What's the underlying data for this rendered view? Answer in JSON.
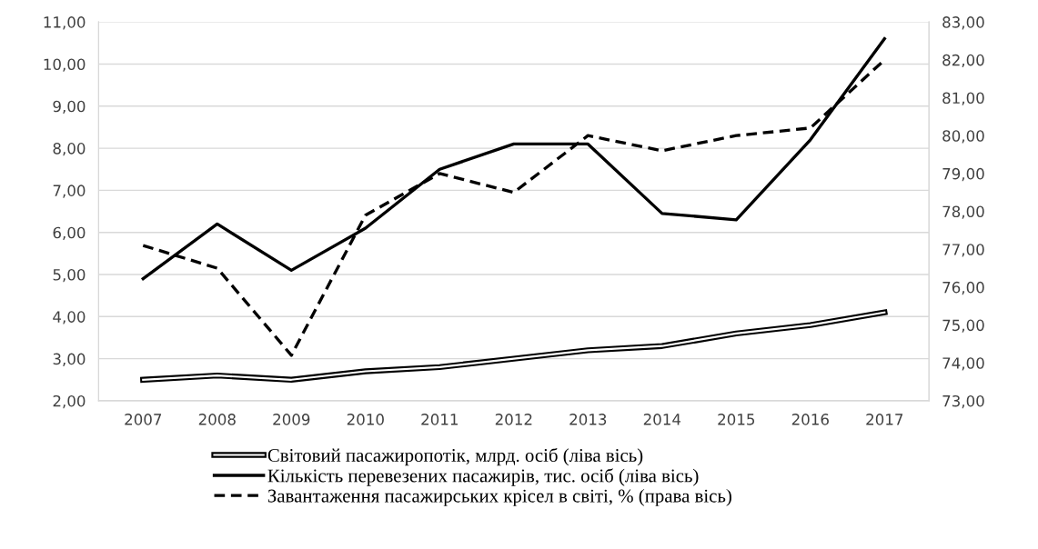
{
  "chart_data": {
    "type": "line",
    "categories": [
      "2007",
      "2008",
      "2009",
      "2010",
      "2011",
      "2012",
      "2013",
      "2014",
      "2015",
      "2016",
      "2017"
    ],
    "series": [
      {
        "name": "Світовий пасажиропотік, млрд. осіб (ліва вісь)",
        "color": "#000000",
        "values": [
          2.5,
          2.6,
          2.5,
          2.7,
          2.8,
          3.0,
          3.2,
          3.3,
          3.6,
          3.8,
          4.1
        ]
      },
      {
        "name": "Кількість перевезених пасажирів, тис. осіб (ліва вісь)",
        "color": "#000000",
        "line_style": "solid",
        "values": [
          4.9,
          6.2,
          5.1,
          6.1,
          7.5,
          8.1,
          8.1,
          6.45,
          6.3,
          8.2,
          10.6
        ]
      },
      {
        "name": "Завантаження пасажирських крісел в світі, % (права вісь)",
        "color": "#000000",
        "line_style": "dashed",
        "axis": "y2",
        "values": [
          77.1,
          76.5,
          74.2,
          77.9,
          79.0,
          78.5,
          80.0,
          79.6,
          80.0,
          80.2,
          82.0
        ]
      }
    ],
    "ylim": [
      2,
      11
    ],
    "yticks": [
      {
        "value": 2,
        "label": "2,00"
      },
      {
        "value": 3,
        "label": "3,00"
      },
      {
        "value": 4,
        "label": "4,00"
      },
      {
        "value": 5,
        "label": "5,00"
      },
      {
        "value": 6,
        "label": "6,00"
      },
      {
        "value": 7,
        "label": "7,00"
      },
      {
        "value": 8,
        "label": "8,00"
      },
      {
        "value": 9,
        "label": "9,00"
      },
      {
        "value": 10,
        "label": "10,00"
      },
      {
        "value": 11,
        "label": "11,00"
      }
    ],
    "y2lim": [
      73,
      83
    ],
    "y2ticks": [
      {
        "value": 73,
        "label": "73,00"
      },
      {
        "value": 74,
        "label": "74,00"
      },
      {
        "value": 75,
        "label": "75,00"
      },
      {
        "value": 76,
        "label": "76,00"
      },
      {
        "value": 77,
        "label": "77,00"
      },
      {
        "value": 78,
        "label": "78,00"
      },
      {
        "value": 79,
        "label": "79,00"
      },
      {
        "value": 80,
        "label": "80,00"
      },
      {
        "value": 81,
        "label": "81,00"
      },
      {
        "value": 82,
        "label": "82,00"
      },
      {
        "value": 83,
        "label": "83,00"
      }
    ],
    "grid": "y",
    "legend": "bottom"
  }
}
